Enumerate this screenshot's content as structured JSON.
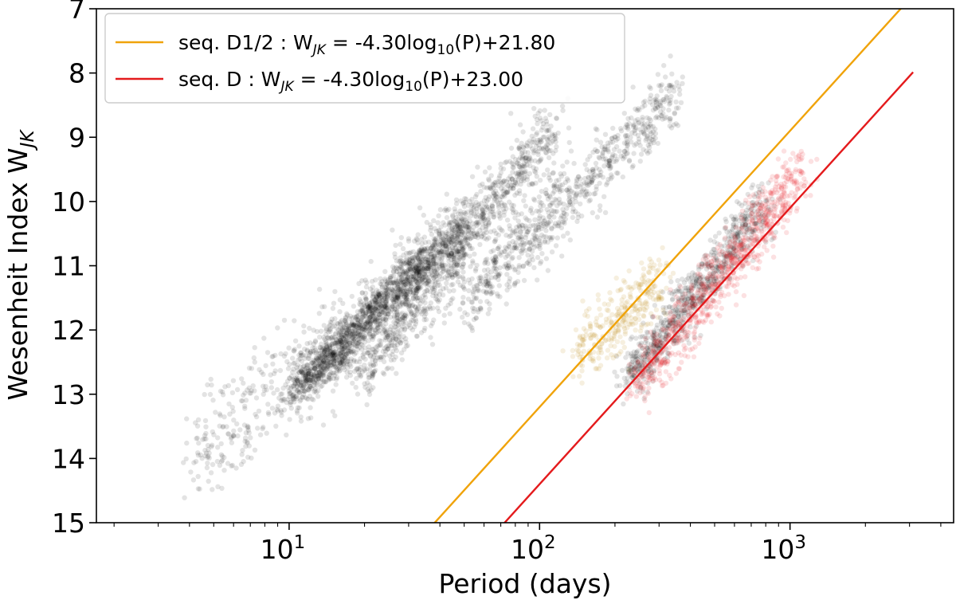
{
  "chart_data": {
    "type": "scatter",
    "title": "",
    "xlabel": "Period (days)",
    "ylabel": "Wesenheit Index W",
    "ylabel_sub": "JK",
    "x_scale": "log",
    "xlim": [
      1.7,
      4500
    ],
    "ylim": [
      15,
      7
    ],
    "y_inverted": true,
    "grid": false,
    "x_ticks": [
      {
        "value": 10,
        "base": "10",
        "exp": "1"
      },
      {
        "value": 100,
        "base": "10",
        "exp": "2"
      },
      {
        "value": 1000,
        "base": "10",
        "exp": "3"
      }
    ],
    "y_ticks": [
      7,
      8,
      9,
      10,
      11,
      12,
      13,
      14,
      15
    ],
    "legend": {
      "placement": "top-left",
      "entries": [
        {
          "prefix": "seq. D1/2 : W",
          "sub": "JK",
          "mid": " = -4.30log",
          "sub2": "10",
          "suffix": "(P)+21.80",
          "color": "#f0a30a"
        },
        {
          "prefix": "seq. D : W",
          "sub": "JK",
          "mid": " = -4.30log",
          "sub2": "10",
          "suffix": "(P)+23.00",
          "color": "#e41a1c"
        }
      ]
    },
    "lines": [
      {
        "name": "seq. D1/2",
        "slope": -4.3,
        "intercept": 21.8,
        "color": "#f0a30a",
        "x_range": [
          20,
          3100
        ]
      },
      {
        "name": "seq. D",
        "slope": -4.3,
        "intercept": 23.0,
        "color": "#e41a1c",
        "x_range": [
          40,
          3100
        ]
      }
    ],
    "point_groups": [
      {
        "name": "sequence A'",
        "color": "#000000",
        "n": 900,
        "logP": [
          1.0,
          1.7
        ],
        "w_at_start": 13.05,
        "w_at_end": 10.3,
        "scatter": 0.17
      },
      {
        "name": "sequence A core",
        "color": "#000000",
        "n": 700,
        "logP": [
          1.05,
          1.55
        ],
        "w_at_start": 12.85,
        "w_at_end": 10.9,
        "scatter": 0.15
      },
      {
        "name": "sequence B",
        "color": "#000000",
        "n": 800,
        "logP": [
          1.3,
          2.05
        ],
        "w_at_start": 12.7,
        "w_at_end": 8.8,
        "scatter": 0.2
      },
      {
        "name": "sequence C'",
        "color": "#000000",
        "n": 700,
        "logP": [
          1.7,
          2.55
        ],
        "w_at_start": 11.6,
        "w_at_end": 8.3,
        "scatter": 0.22
      },
      {
        "name": "sequence C",
        "color": "#000000",
        "n": 800,
        "logP": [
          2.35,
          2.9
        ],
        "w_at_start": 12.8,
        "w_at_end": 10.0,
        "scatter": 0.18
      },
      {
        "name": "seq. D1/2 stars",
        "color": "#b8860b",
        "n": 300,
        "logP": [
          2.15,
          2.5
        ],
        "w_at_start": 12.4,
        "w_at_end": 11.2,
        "scatter": 0.25
      },
      {
        "name": "seq. D stars",
        "color": "#e41a1c",
        "n": 800,
        "logP": [
          2.4,
          3.05
        ],
        "w_at_start": 12.8,
        "w_at_end": 9.5,
        "scatter": 0.22
      },
      {
        "name": "faint halo",
        "color": "#000000",
        "n": 700,
        "logP": [
          0.6,
          2.1
        ],
        "w_at_start": 14.0,
        "w_at_end": 9.5,
        "scatter": 0.45
      }
    ]
  }
}
